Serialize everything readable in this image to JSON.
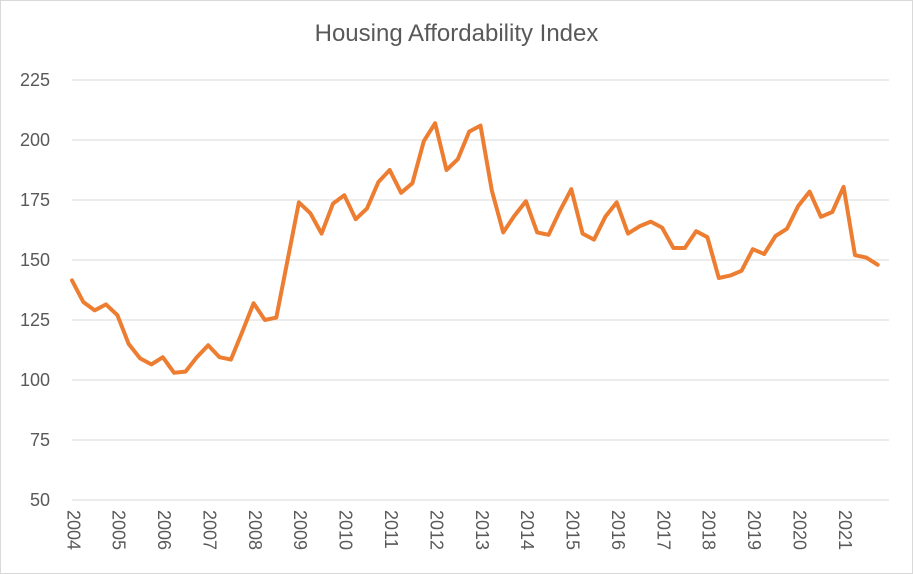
{
  "chart_data": {
    "type": "line",
    "title": "Housing Affordability Index",
    "xlabel": "",
    "ylabel": "",
    "ylim": [
      50,
      225
    ],
    "y_ticks": [
      50,
      75,
      100,
      125,
      150,
      175,
      200,
      225
    ],
    "grid": true,
    "legend": "none",
    "x_tick_labels": [
      "2004",
      "2005",
      "2006",
      "2007",
      "2008",
      "2009",
      "2010",
      "2011",
      "2012",
      "2013",
      "2014",
      "2015",
      "2016",
      "2017",
      "2018",
      "2019",
      "2020",
      "2021"
    ],
    "series": [
      {
        "color": "#ED7D31",
        "x": [
          "2004 Q1",
          "2004 Q2",
          "2004 Q3",
          "2004 Q4",
          "2005 Q1",
          "2005 Q2",
          "2005 Q3",
          "2005 Q4",
          "2006 Q1",
          "2006 Q2",
          "2006 Q3",
          "2006 Q4",
          "2007 Q1",
          "2007 Q2",
          "2007 Q3",
          "2007 Q4",
          "2008 Q1",
          "2008 Q2",
          "2008 Q3",
          "2008 Q4",
          "2009 Q1",
          "2009 Q2",
          "2009 Q3",
          "2009 Q4",
          "2010 Q1",
          "2010 Q2",
          "2010 Q3",
          "2010 Q4",
          "2011 Q1",
          "2011 Q2",
          "2011 Q3",
          "2011 Q4",
          "2012 Q1",
          "2012 Q2",
          "2012 Q3",
          "2012 Q4",
          "2013 Q1",
          "2013 Q2",
          "2013 Q3",
          "2013 Q4",
          "2014 Q1",
          "2014 Q2",
          "2014 Q3",
          "2014 Q4",
          "2015 Q1",
          "2015 Q2",
          "2015 Q3",
          "2015 Q4",
          "2016 Q1",
          "2016 Q2",
          "2016 Q3",
          "2016 Q4",
          "2017 Q1",
          "2017 Q2",
          "2017 Q3",
          "2017 Q4",
          "2018 Q1",
          "2018 Q2",
          "2018 Q3",
          "2018 Q4",
          "2019 Q1",
          "2019 Q2",
          "2019 Q3",
          "2019 Q4",
          "2020 Q1",
          "2020 Q2",
          "2020 Q3",
          "2020 Q4",
          "2021 Q1",
          "2021 Q2",
          "2021 Q3",
          "2021 Q4"
        ],
        "values": [
          141.5,
          132.5,
          129,
          131.5,
          127,
          115,
          109,
          106.5,
          109.5,
          103,
          103.5,
          109.5,
          114.5,
          109.5,
          108.5,
          120,
          132,
          125,
          126,
          150,
          174,
          169.5,
          161,
          173.5,
          177,
          167,
          171.5,
          182.5,
          187.5,
          178,
          182,
          199.5,
          207,
          187.5,
          192,
          203.5,
          206,
          179,
          161.5,
          168.5,
          174.5,
          161.5,
          160.5,
          170.5,
          179.5,
          161,
          158.5,
          168,
          174,
          161,
          164,
          166,
          163.5,
          155,
          155,
          162,
          159.5,
          142.5,
          143.5,
          145.5,
          154.5,
          152.5,
          160,
          163,
          172.5,
          178.5,
          168,
          170,
          180.5,
          152,
          151,
          148
        ]
      }
    ]
  }
}
